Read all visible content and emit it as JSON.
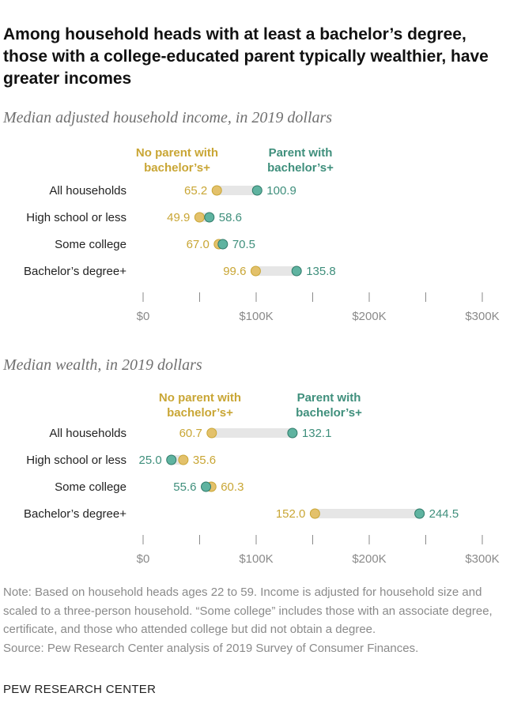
{
  "title": "Among household heads with at least a bachelor’s degree, those with a college-educated parent typically wealthier, have greater incomes",
  "colors": {
    "no_parent": "#e3c16b",
    "no_parent_text": "#c9a635",
    "parent": "#5fb3a0",
    "parent_text": "#3f8f7c",
    "dot_stroke_no": "#c9a635",
    "dot_stroke_yes": "#2f7a69",
    "bar": "#e6e6e6",
    "axis": "#8a8a8a"
  },
  "chart_data": [
    {
      "type": "dot",
      "subtitle": "Median adjusted household income, in 2019 dollars",
      "legend": {
        "no_parent": "No parent with bachelor’s+",
        "parent": "Parent with bachelor’s+"
      },
      "categories": [
        "All households",
        "High school or less",
        "Some college",
        "Bachelor’s degree+"
      ],
      "unit": "thousands of 2019 dollars",
      "series": [
        {
          "name": "No parent with bachelor’s+",
          "values": [
            65.2,
            49.9,
            67.0,
            99.6
          ],
          "labels": [
            "65.2",
            "49.9",
            "67.0",
            "99.6"
          ]
        },
        {
          "name": "Parent with bachelor’s+",
          "values": [
            100.9,
            58.6,
            70.5,
            135.8
          ],
          "labels": [
            "100.9",
            "58.6",
            "70.5",
            "135.8"
          ]
        }
      ],
      "xlim": [
        0,
        300
      ],
      "xticks": [
        0,
        50,
        100,
        150,
        200,
        250,
        300
      ],
      "xtick_labels": [
        "$0",
        "",
        "$100K",
        "",
        "$200K",
        "",
        "$300K"
      ]
    },
    {
      "type": "dot",
      "subtitle": "Median wealth, in 2019 dollars",
      "legend": {
        "no_parent": "No parent with bachelor’s+",
        "parent": "Parent with bachelor’s+"
      },
      "categories": [
        "All households",
        "High school or less",
        "Some college",
        "Bachelor’s degree+"
      ],
      "unit": "thousands of 2019 dollars",
      "series": [
        {
          "name": "No parent with bachelor’s+",
          "values": [
            60.7,
            35.6,
            60.3,
            152.0
          ],
          "labels": [
            "60.7",
            "35.6",
            "60.3",
            "152.0"
          ]
        },
        {
          "name": "Parent with bachelor’s+",
          "values": [
            132.1,
            25.0,
            55.6,
            244.5
          ],
          "labels": [
            "132.1",
            "25.0",
            "55.6",
            "244.5"
          ]
        }
      ],
      "xlim": [
        0,
        300
      ],
      "xticks": [
        0,
        50,
        100,
        150,
        200,
        250,
        300
      ],
      "xtick_labels": [
        "$0",
        "",
        "$100K",
        "",
        "$200K",
        "",
        "$300K"
      ]
    }
  ],
  "note": "Note: Based on household heads ages 22 to 59. Income is adjusted for household size and scaled to a three-person household. “Some college” includes those with an associate degree, certificate, and those who attended college but did not obtain a degree.",
  "source": "Source: Pew Research Center analysis of 2019 Survey of Consumer Finances.",
  "brand": "PEW RESEARCH CENTER"
}
